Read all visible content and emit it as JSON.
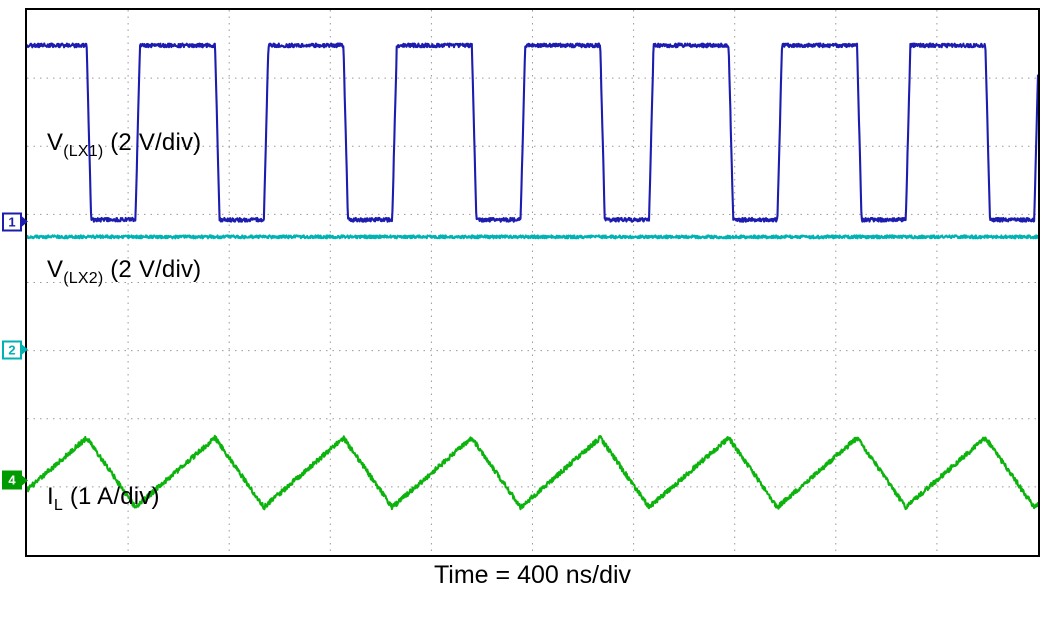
{
  "chart_data": {
    "type": "line",
    "title": "",
    "xlabel": "Time = 400 ns/div",
    "x_divisions": 10,
    "y_divisions": 8,
    "time_per_div": "400 ns",
    "grid": "dotted",
    "grid_color": "#9a9a9a",
    "background": "#ffffff",
    "series": [
      {
        "name": "V_LX1",
        "channel": "1",
        "label_prefix": "V",
        "label_sub": "(LX1)",
        "label_suffix": " (2 V/div)",
        "scale": "2 V/div",
        "waveform": "square",
        "color": "#1c1cae",
        "period_div": 1.27,
        "period_ns": 508,
        "duty": 0.62,
        "first_fall_div": 0.59,
        "high_y_div": 0.52,
        "low_y_div": 3.08,
        "amplitude_V_est": 5.1,
        "noise_div": 0.028
      },
      {
        "name": "V_LX2",
        "channel": "2",
        "label_prefix": "V",
        "label_sub": "(LX2)",
        "label_suffix": " (2 V/div)",
        "scale": "2 V/div",
        "waveform": "flat",
        "color": "#00b2b2",
        "level_y_div": 3.33,
        "noise_div": 0.022
      },
      {
        "name": "I_L",
        "channel": "4",
        "label_prefix": "I",
        "label_sub": "L",
        "label_suffix": " (1 A/div)",
        "scale": "1 A/div",
        "waveform": "triangle",
        "color": "#0db30d",
        "period_div": 1.27,
        "period_ns": 508,
        "duty": 0.62,
        "first_fall_div": 0.59,
        "peak_y_div": 6.28,
        "valley_y_div": 7.3,
        "ripple_A_est": 1.0,
        "noise_div": 0.035
      }
    ],
    "channel_markers": [
      {
        "number": "1",
        "color": "#1c1cae",
        "y_div": 3.11,
        "filled": false
      },
      {
        "number": "2",
        "color": "#00b2b2",
        "y_div": 4.99,
        "filled": false
      },
      {
        "number": "4",
        "color": "#009b00",
        "y_div": 6.9,
        "filled": true
      }
    ]
  }
}
